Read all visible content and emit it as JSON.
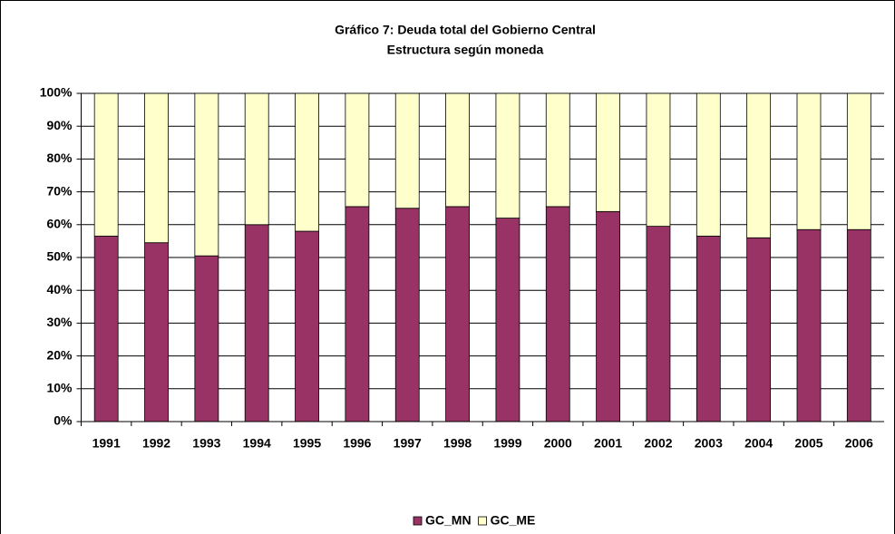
{
  "chart_data": {
    "type": "stacked_bar",
    "title": "Gráfico 7: Deuda total del Gobierno Central",
    "subtitle": "Estructura según moneda",
    "categories": [
      "1991",
      "1992",
      "1993",
      "1994",
      "1995",
      "1996",
      "1997",
      "1998",
      "1999",
      "2000",
      "2001",
      "2002",
      "2003",
      "2004",
      "2005",
      "2006"
    ],
    "series": [
      {
        "name": "GC_MN",
        "color": "#993366",
        "values": [
          56.5,
          54.5,
          50.5,
          60,
          58,
          65.5,
          65,
          65.5,
          62,
          65.5,
          64,
          59.5,
          56.5,
          56,
          58.5,
          58.5
        ]
      },
      {
        "name": "GC_ME",
        "color": "#FFFFCC",
        "values": [
          43.5,
          45.5,
          49.5,
          40,
          42,
          34.5,
          35,
          34.5,
          38,
          34.5,
          36,
          40.5,
          43.5,
          44,
          41.5,
          41.5
        ]
      }
    ],
    "ylim": [
      0,
      100
    ],
    "yticks": [
      {
        "value": 0,
        "label": "0%"
      },
      {
        "value": 10,
        "label": "10%"
      },
      {
        "value": 20,
        "label": "20%"
      },
      {
        "value": 30,
        "label": "30%"
      },
      {
        "value": 40,
        "label": "40%"
      },
      {
        "value": 50,
        "label": "50%"
      },
      {
        "value": 60,
        "label": "60%"
      },
      {
        "value": 70,
        "label": "70%"
      },
      {
        "value": 80,
        "label": "80%"
      },
      {
        "value": 90,
        "label": "90%"
      },
      {
        "value": 100,
        "label": "100%"
      }
    ],
    "grid": true,
    "legend": "bottom"
  }
}
